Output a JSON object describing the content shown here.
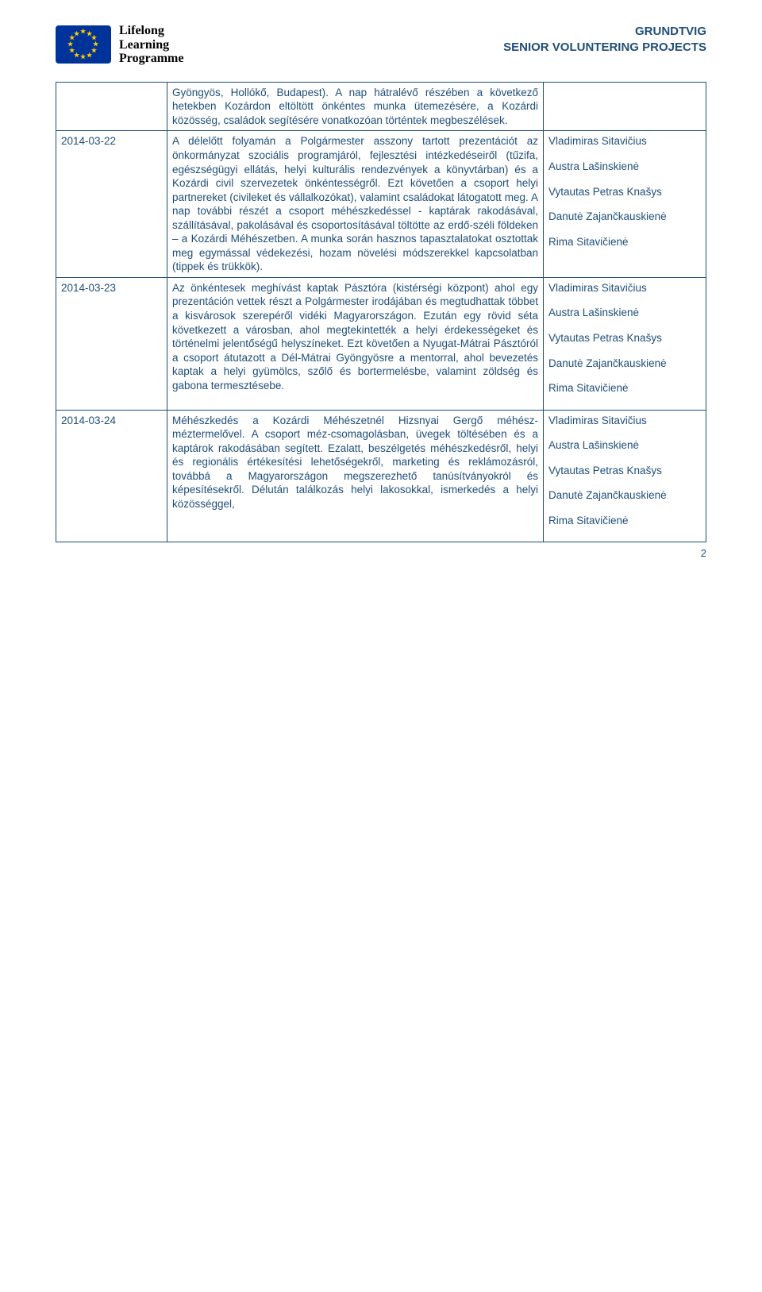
{
  "header": {
    "llp_line1": "Lifelong",
    "llp_line2": "Learning",
    "llp_line3": "Programme",
    "right_line1": "GRUNDTVIG",
    "right_line2": "SENIOR VOLUNTERING PROJECTS"
  },
  "colors": {
    "text": "#1f4e79",
    "border": "#1f4e79",
    "flag_bg": "#003399",
    "star": "#ffcc00",
    "background": "#ffffff"
  },
  "rows": [
    {
      "date": "",
      "body": "Gyöngyös, Hollókő, Budapest). A nap hátralévő részében a következő hetekben Kozárdon eltöltött önkéntes munka ütemezésére, a Kozárdi közösség, családok segítésére vonatkozóan történtek megbeszélések.",
      "names": []
    },
    {
      "date": "2014-03-22",
      "body": "A délelőtt folyamán a Polgármester asszony tartott prezentációt az önkormányzat szociális programjáról, fejlesztési intézkedéseiről (tűzifa, egészségügyi ellátás, helyi kulturális rendezvények a könyvtárban) és a Kozárdi civil szervezetek önkéntességről. Ezt követően a csoport helyi partnereket (civileket és vállalkozókat), valamint családokat látogatott meg. A nap további részét a csoport méhészkedéssel - kaptárak rakodásával, szállításával, pakolásával és csoportosításával töltötte az erdő-széli földeken – a Kozárdi Méhészetben. A munka során hasznos tapasztalatokat osztottak meg egymással védekezési, hozam növelési módszerekkel kapcsolatban (tippek és trükkök).",
      "names": [
        "Vladimiras Sitavičius",
        "Austra Lašinskienė",
        "Vytautas Petras Knašys",
        "Danutė Zajančkauskienė",
        "Rima Sitavičienė"
      ]
    },
    {
      "date": "2014-03-23",
      "body": "Az önkéntesek meghívást kaptak Pásztóra (kistérségi központ) ahol egy prezentáción vettek részt a Polgármester irodájában és megtudhattak többet a kisvárosok szerepéről vidéki Magyarországon. Ezután egy rövid séta következett a városban, ahol megtekintették a helyi érdekességeket és történelmi jelentőségű helyszíneket. Ezt követően a Nyugat-Mátrai Pásztóról a csoport átutazott a Dél-Mátrai Gyöngyösre a mentorral, ahol bevezetés kaptak a helyi gyümölcs, szőlő és bortermelésbe, valamint zöldség és gabona termesztésebe.",
      "names": [
        "Vladimiras Sitavičius",
        "Austra Lašinskienė",
        "Vytautas Petras Knašys",
        " Danutė Zajančkauskienė",
        "Rima Sitavičienė"
      ]
    },
    {
      "date": "2014-03-24",
      "body": "Méhészkedés a Kozárdi Méhészetnél Hizsnyai Gergő méhész-méztermelővel. A csoport méz-csomagolásban, üvegek töltésében és a kaptárok rakodásában segített. Ezalatt, beszélgetés méhészkedésről, helyi és regionális értékesítési lehetőségekről, marketing és reklámozásról, továbbá a Magyarországon megszerezhető tanúsítványokról és képesítésekről. Délután találkozás helyi lakosokkal, ismerkedés a helyi közösséggel,",
      "names": [
        "Vladimiras Sitavičius",
        "Austra Lašinskienė",
        "Vytautas Petras Knašys",
        "Danutė Zajančkauskienė",
        "Rima Sitavičienė"
      ]
    }
  ],
  "page_number": "2"
}
